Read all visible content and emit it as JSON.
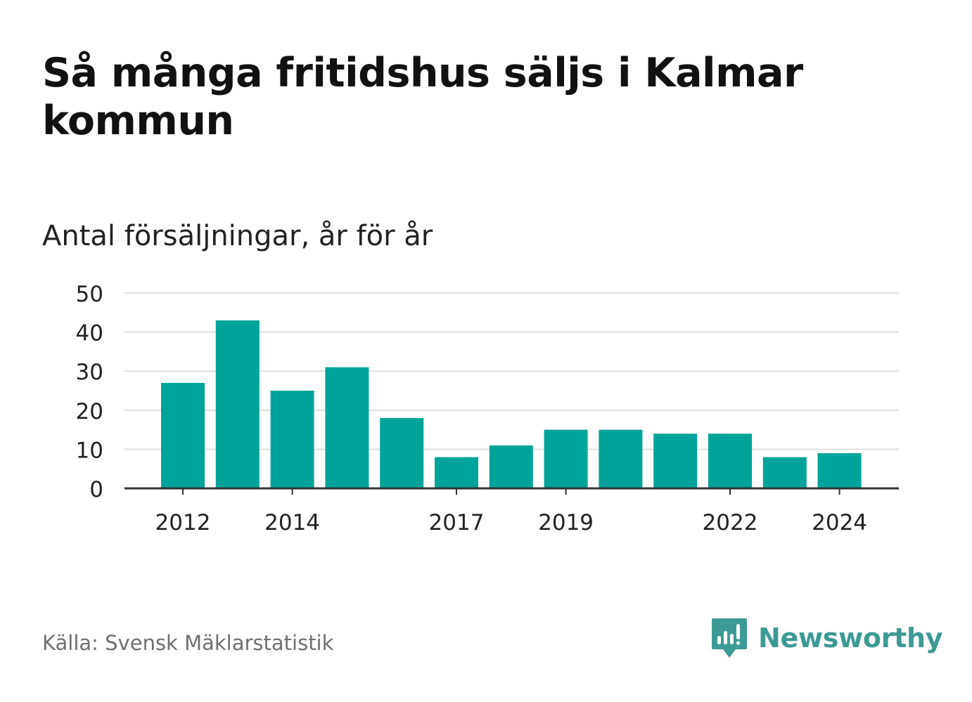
{
  "title": "Så många fritidshus säljs i Kalmar kommun",
  "subtitle": "Antal försäljningar, år för år",
  "source": "Källa: Svensk Mäklarstatistik",
  "brand": {
    "name": "Newsworthy",
    "icon": "newsworthy-bar-chart-logo-icon",
    "color": "#3c9a96"
  },
  "colors": {
    "bar": "#00a39a",
    "grid": "#dddddd",
    "axis": "#333333",
    "text": "#222222"
  },
  "chart_data": {
    "type": "bar",
    "categories": [
      "2012",
      "2013",
      "2014",
      "2015",
      "2016",
      "2017",
      "2018",
      "2019",
      "2020",
      "2021",
      "2022",
      "2023",
      "2024"
    ],
    "values": [
      27,
      43,
      25,
      31,
      18,
      8,
      11,
      15,
      15,
      14,
      14,
      8,
      9
    ],
    "x_tick_labels": [
      "2012",
      "2014",
      "2017",
      "2019",
      "2022",
      "2024"
    ],
    "y_ticks": [
      0,
      10,
      20,
      30,
      40,
      50
    ],
    "ylim": [
      0,
      50
    ],
    "grid": true,
    "title": "Så många fritidshus säljs i Kalmar kommun",
    "subtitle": "Antal försäljningar, år för år"
  }
}
